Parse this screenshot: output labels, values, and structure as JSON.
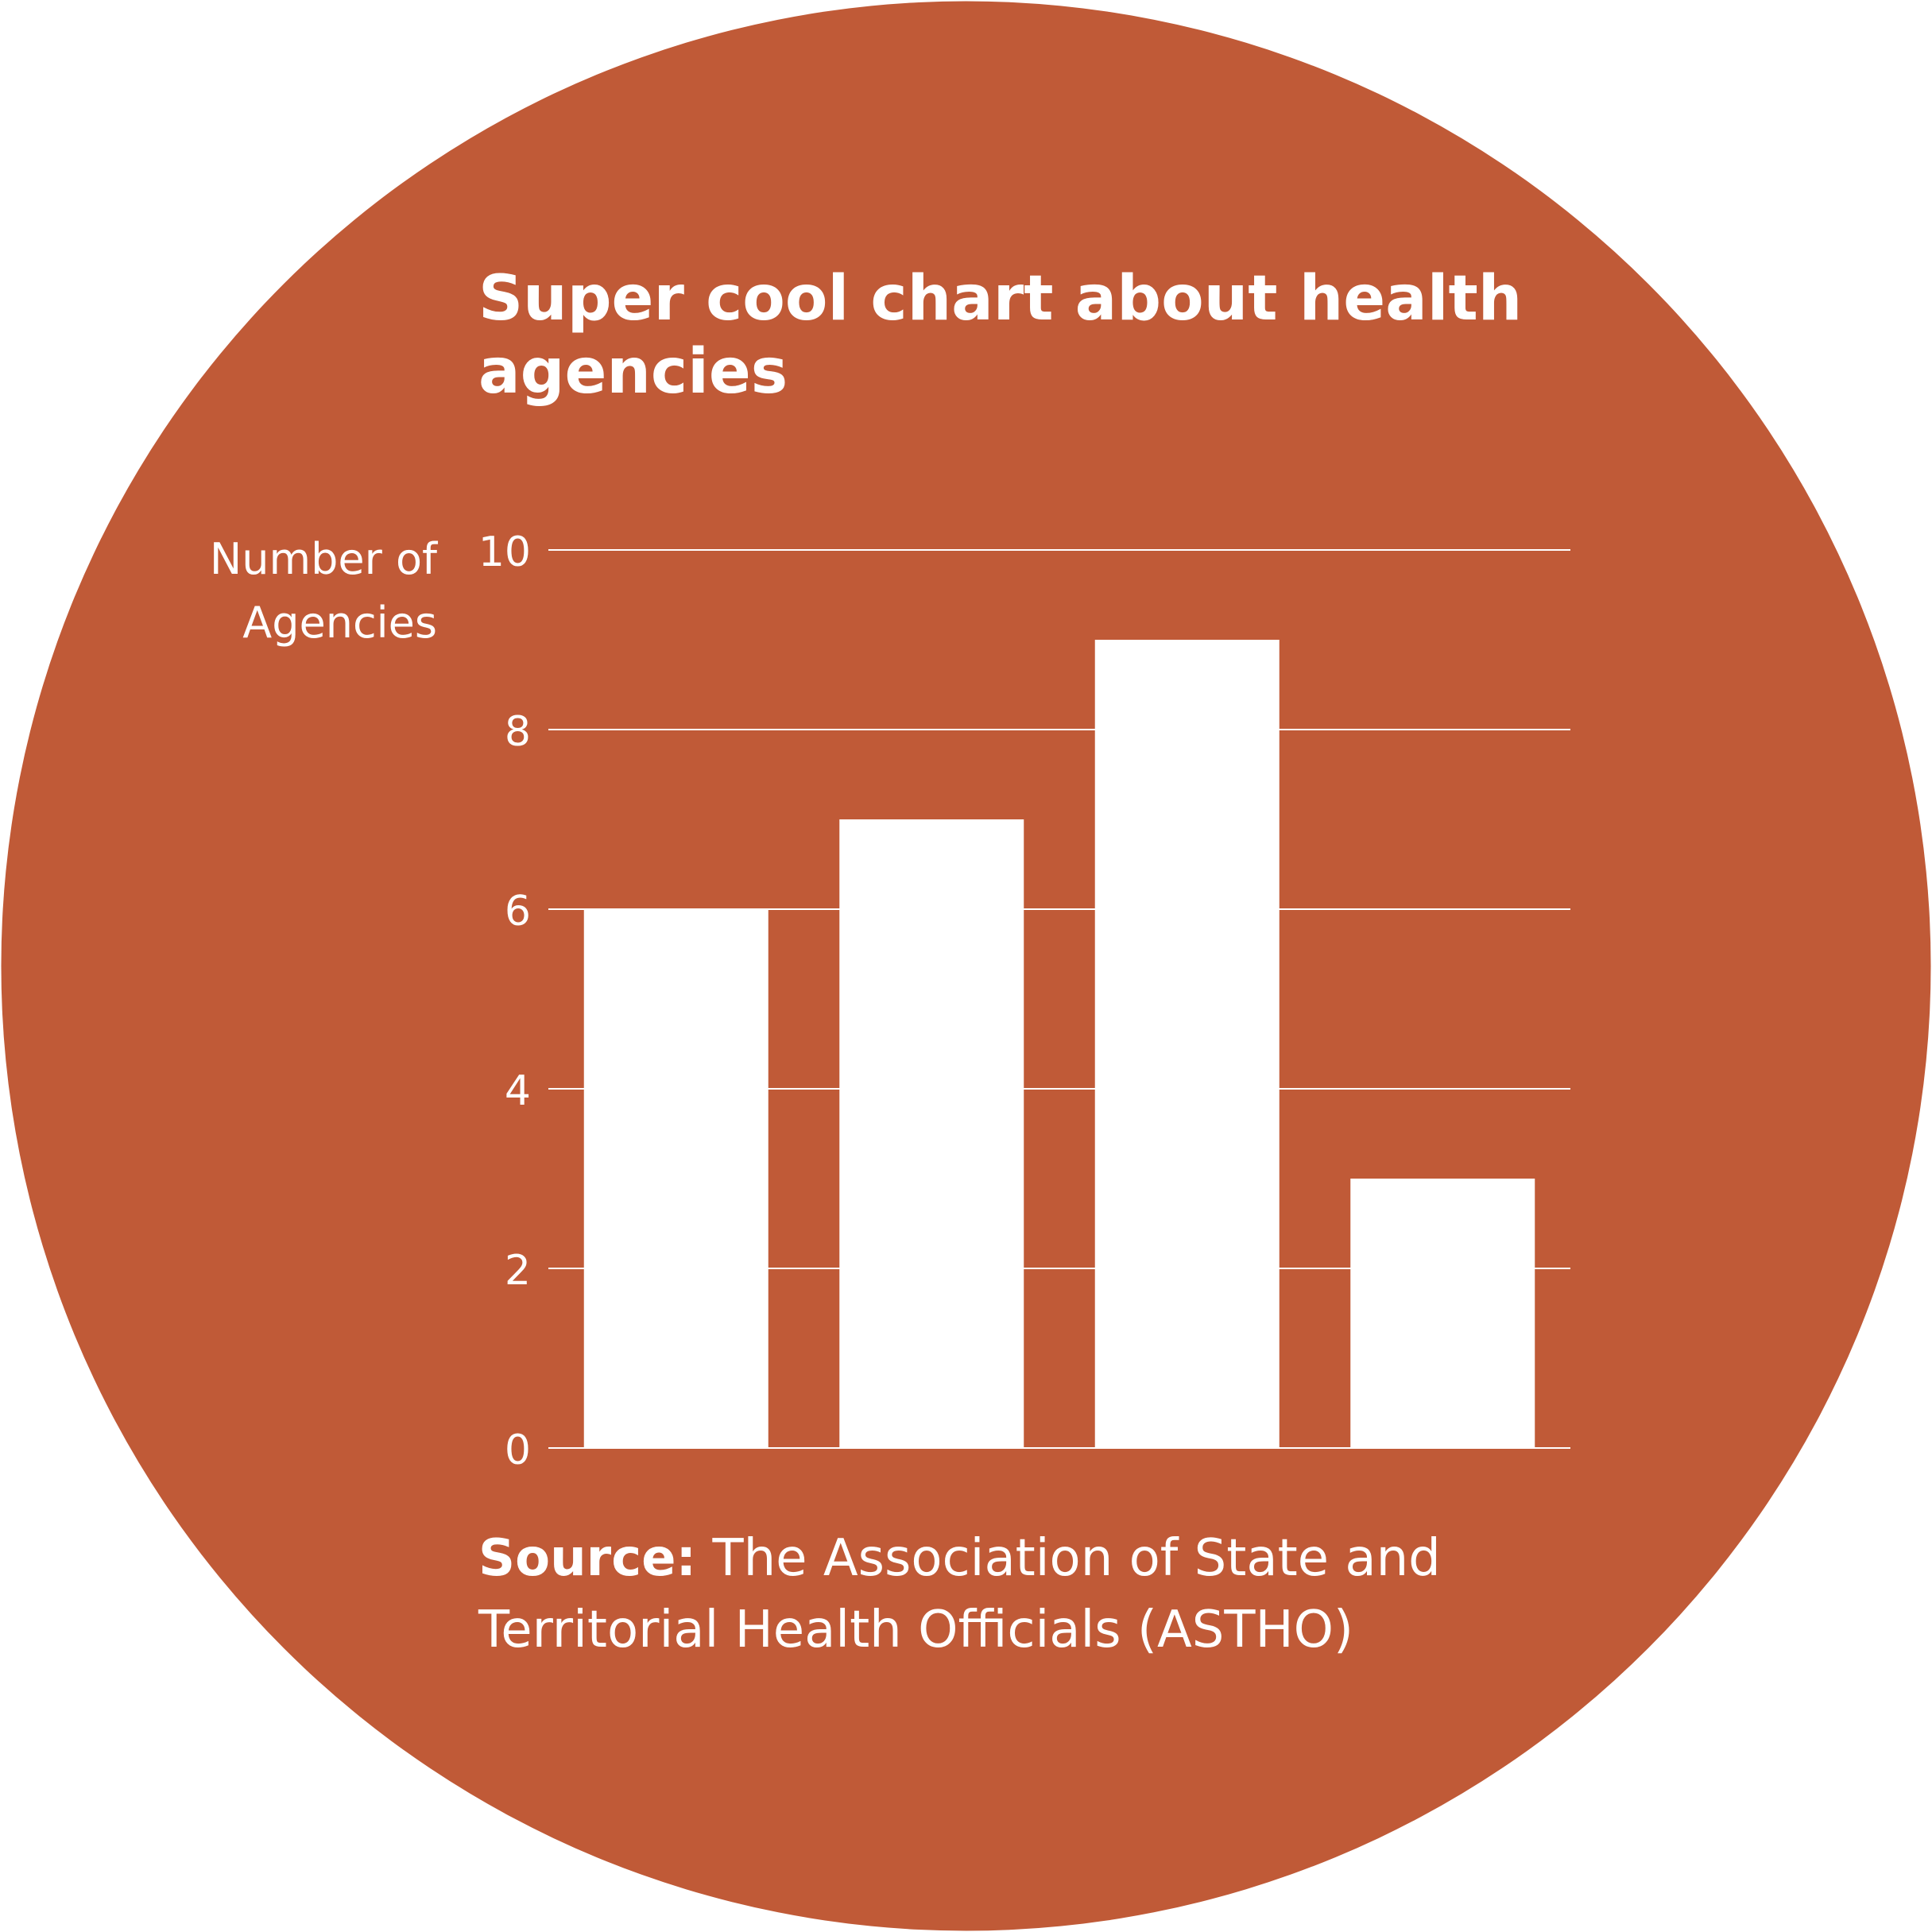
{
  "background_color": "#ffffff",
  "circle_color": "#c05a37",
  "mark_color": "#ffffff",
  "source": {
    "label": "Source:",
    "text": "The Association of State and Territorial Health Officials (ASTHO)"
  },
  "chart_data": {
    "type": "bar",
    "title": "Super cool chart about health agencies",
    "xlabel": "",
    "ylabel": "Number of Agencies",
    "ylim": [
      0,
      10
    ],
    "yticks": [
      0,
      2,
      4,
      6,
      8,
      10
    ],
    "grid": true,
    "series": [
      {
        "values": [
          6,
          7,
          9,
          3
        ]
      }
    ]
  }
}
